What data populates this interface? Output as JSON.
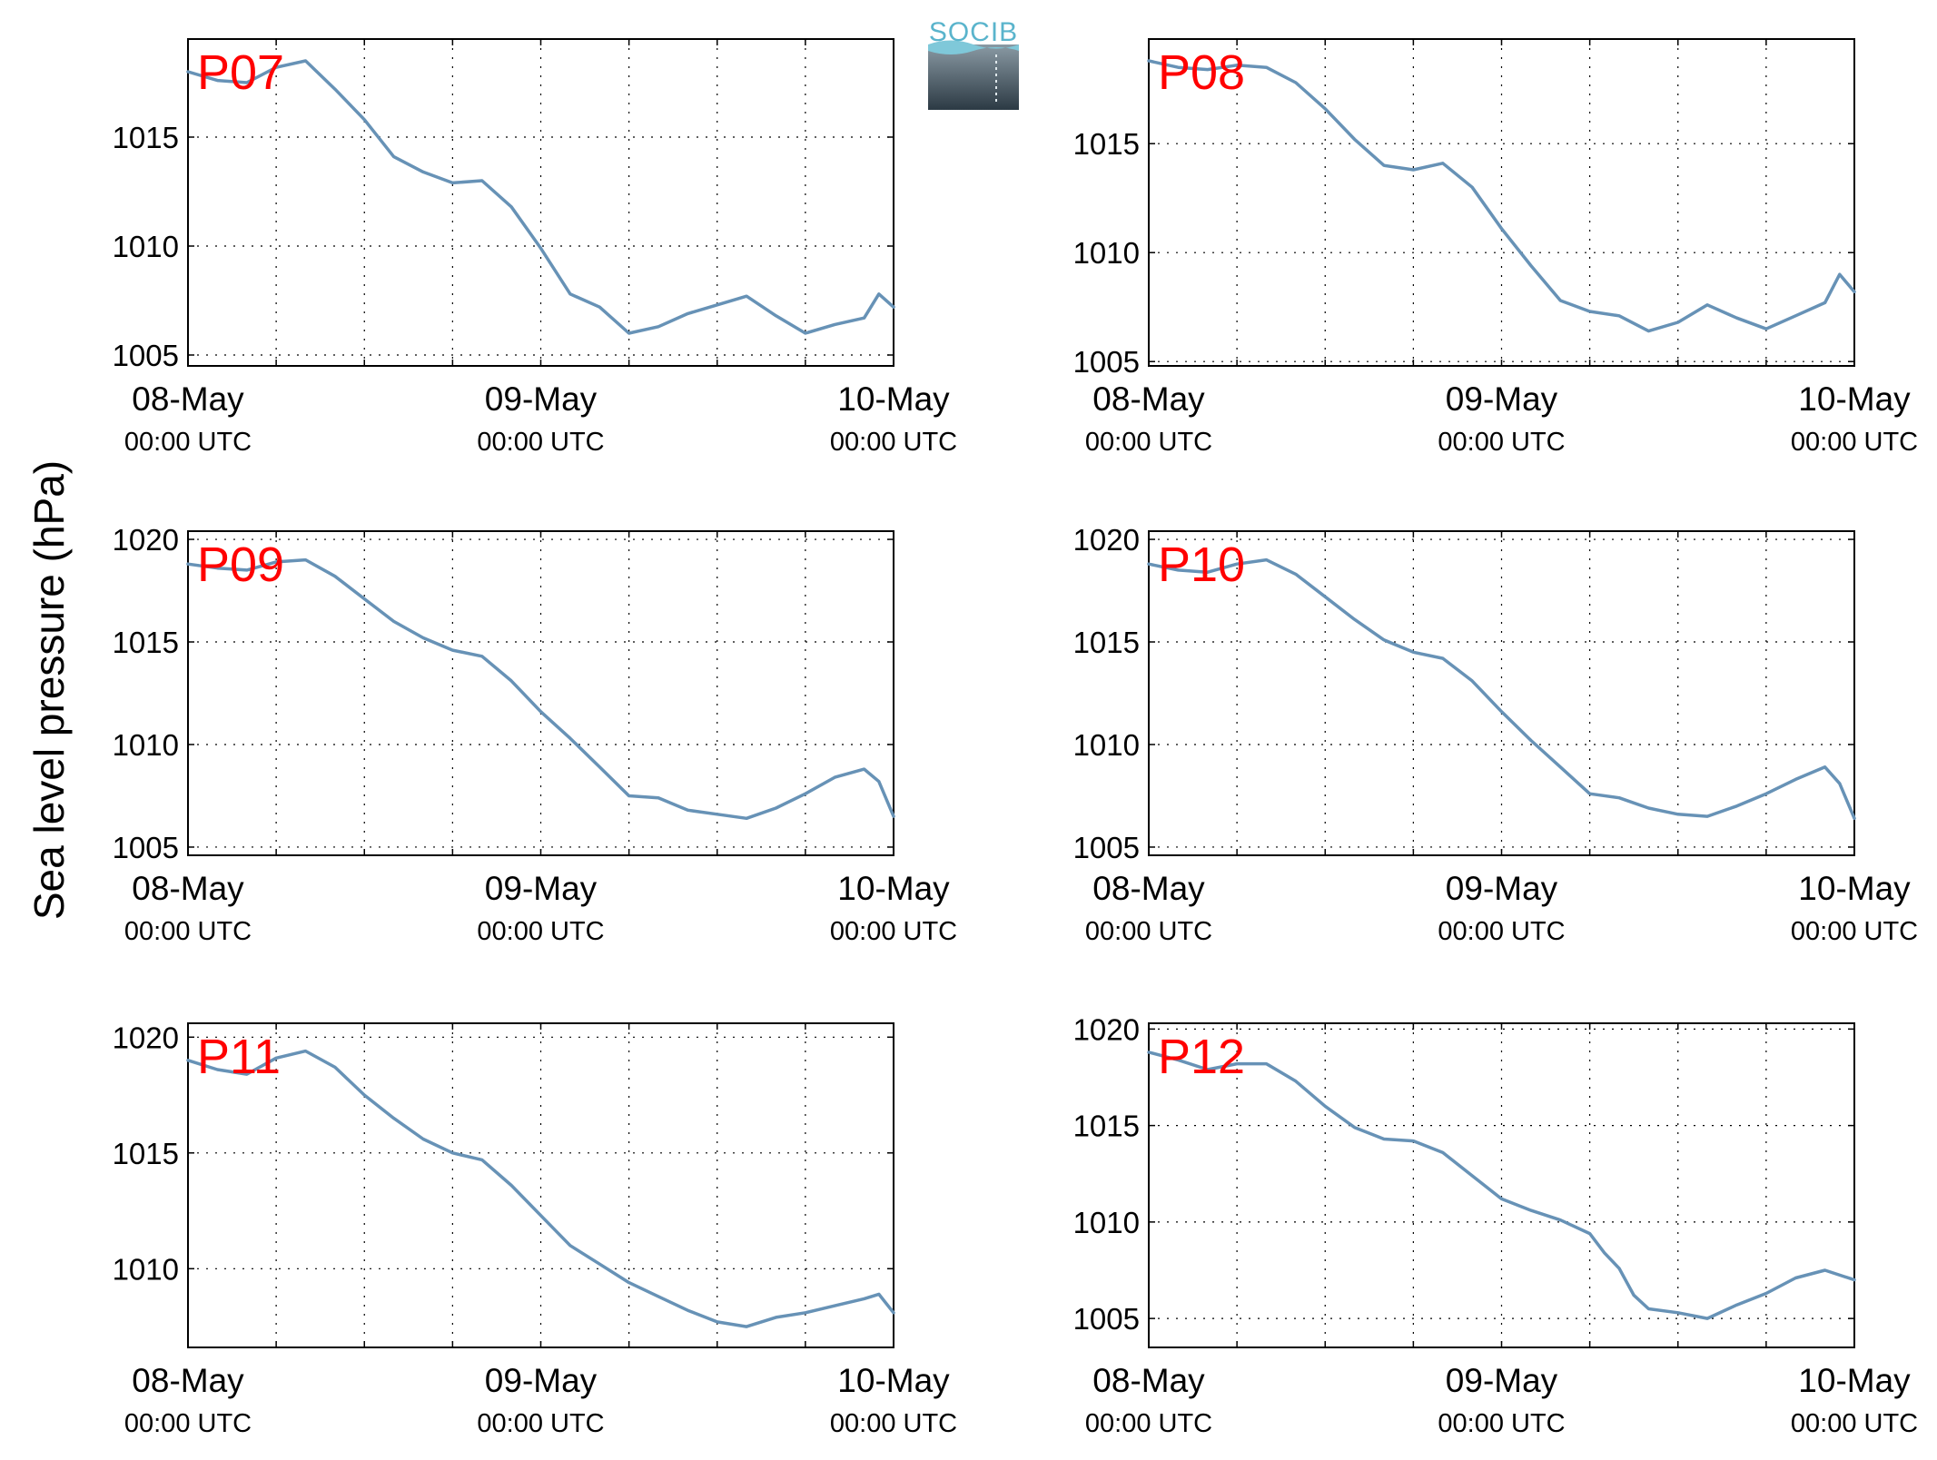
{
  "figure": {
    "ylabel": "Sea level pressure (hPa)",
    "logo": {
      "text": "SOCIB"
    },
    "colors": {
      "line": "#6792b6",
      "panel_label": "#ff0000",
      "axis": "#000000",
      "logo_text": "#5ab4cc"
    }
  },
  "chart_data": [
    {
      "type": "line",
      "label": "P07",
      "x_ticks": [
        {
          "day": "08-May",
          "time": "00:00 UTC"
        },
        {
          "day": "09-May",
          "time": "00:00 UTC"
        },
        {
          "day": "10-May",
          "time": "00:00 UTC"
        }
      ],
      "xlim": [
        "2013-05-08 00:00",
        "2013-05-10 00:00"
      ],
      "yticks": [
        1005,
        1010,
        1015
      ],
      "ylim": [
        1004.5,
        1019.5
      ],
      "grid": true,
      "series": [
        {
          "x_hours": [
            0,
            2,
            4,
            6,
            8,
            10,
            12,
            14,
            16,
            18,
            20,
            22,
            24,
            26,
            28,
            30,
            32,
            34,
            36,
            38,
            40,
            42,
            44,
            46,
            47,
            48
          ],
          "values": [
            1018.0,
            1017.6,
            1017.5,
            1018.2,
            1018.5,
            1017.2,
            1015.8,
            1014.1,
            1013.4,
            1012.9,
            1013.0,
            1011.8,
            1009.9,
            1007.8,
            1007.2,
            1006.0,
            1006.3,
            1006.9,
            1007.3,
            1007.7,
            1006.8,
            1006.0,
            1006.4,
            1006.7,
            1007.8,
            1007.2
          ]
        }
      ]
    },
    {
      "type": "line",
      "label": "P08",
      "x_ticks": [
        {
          "day": "08-May",
          "time": "00:00 UTC"
        },
        {
          "day": "09-May",
          "time": "00:00 UTC"
        },
        {
          "day": "10-May",
          "time": "00:00 UTC"
        }
      ],
      "xlim": [
        "2013-05-08 00:00",
        "2013-05-10 00:00"
      ],
      "yticks": [
        1005,
        1010,
        1015
      ],
      "ylim": [
        1004.8,
        1019.8
      ],
      "grid": true,
      "series": [
        {
          "x_hours": [
            0,
            2,
            4,
            6,
            8,
            10,
            12,
            14,
            16,
            18,
            20,
            22,
            24,
            26,
            28,
            30,
            32,
            34,
            36,
            38,
            40,
            42,
            44,
            46,
            47,
            48
          ],
          "values": [
            1018.8,
            1018.5,
            1018.4,
            1018.6,
            1018.5,
            1017.8,
            1016.6,
            1015.2,
            1014.0,
            1013.8,
            1014.1,
            1013.0,
            1011.1,
            1009.4,
            1007.8,
            1007.3,
            1007.1,
            1006.4,
            1006.8,
            1007.6,
            1007.0,
            1006.5,
            1007.1,
            1007.7,
            1009.0,
            1008.2
          ]
        }
      ]
    },
    {
      "type": "line",
      "label": "P09",
      "x_ticks": [
        {
          "day": "08-May",
          "time": "00:00 UTC"
        },
        {
          "day": "09-May",
          "time": "00:00 UTC"
        },
        {
          "day": "10-May",
          "time": "00:00 UTC"
        }
      ],
      "xlim": [
        "2013-05-08 00:00",
        "2013-05-10 00:00"
      ],
      "yticks": [
        1005,
        1010,
        1015,
        1020
      ],
      "ylim": [
        1004.6,
        1020.4
      ],
      "grid": true,
      "series": [
        {
          "x_hours": [
            0,
            2,
            4,
            6,
            8,
            10,
            12,
            14,
            16,
            18,
            20,
            22,
            24,
            26,
            28,
            30,
            32,
            34,
            36,
            38,
            40,
            42,
            44,
            46,
            47,
            48
          ],
          "values": [
            1018.8,
            1018.6,
            1018.5,
            1018.9,
            1019.0,
            1018.2,
            1017.1,
            1016.0,
            1015.2,
            1014.6,
            1014.3,
            1013.1,
            1011.6,
            1010.3,
            1008.9,
            1007.5,
            1007.4,
            1006.8,
            1006.6,
            1006.4,
            1006.9,
            1007.6,
            1008.4,
            1008.8,
            1008.2,
            1006.5
          ]
        }
      ]
    },
    {
      "type": "line",
      "label": "P10",
      "x_ticks": [
        {
          "day": "08-May",
          "time": "00:00 UTC"
        },
        {
          "day": "09-May",
          "time": "00:00 UTC"
        },
        {
          "day": "10-May",
          "time": "00:00 UTC"
        }
      ],
      "xlim": [
        "2013-05-08 00:00",
        "2013-05-10 00:00"
      ],
      "yticks": [
        1005,
        1010,
        1015,
        1020
      ],
      "ylim": [
        1004.6,
        1020.4
      ],
      "grid": true,
      "series": [
        {
          "x_hours": [
            0,
            2,
            4,
            6,
            8,
            10,
            12,
            14,
            16,
            18,
            20,
            22,
            24,
            26,
            28,
            30,
            32,
            34,
            36,
            38,
            40,
            42,
            44,
            46,
            47,
            48
          ],
          "values": [
            1018.8,
            1018.5,
            1018.4,
            1018.8,
            1019.0,
            1018.3,
            1017.2,
            1016.1,
            1015.1,
            1014.5,
            1014.2,
            1013.1,
            1011.6,
            1010.2,
            1008.9,
            1007.6,
            1007.4,
            1006.9,
            1006.6,
            1006.5,
            1007.0,
            1007.6,
            1008.3,
            1008.9,
            1008.1,
            1006.4
          ]
        }
      ]
    },
    {
      "type": "line",
      "label": "P11",
      "x_ticks": [
        {
          "day": "08-May",
          "time": "00:00 UTC"
        },
        {
          "day": "09-May",
          "time": "00:00 UTC"
        },
        {
          "day": "10-May",
          "time": "00:00 UTC"
        }
      ],
      "xlim": [
        "2013-05-08 00:00",
        "2013-05-10 00:00"
      ],
      "yticks": [
        1010,
        1015,
        1020
      ],
      "ylim": [
        1006.6,
        1020.6
      ],
      "grid": true,
      "series": [
        {
          "x_hours": [
            0,
            2,
            4,
            6,
            8,
            10,
            12,
            14,
            16,
            18,
            20,
            22,
            24,
            26,
            28,
            30,
            32,
            34,
            36,
            38,
            40,
            42,
            44,
            46,
            47,
            48
          ],
          "values": [
            1019.0,
            1018.6,
            1018.4,
            1019.1,
            1019.4,
            1018.7,
            1017.5,
            1016.5,
            1015.6,
            1015.0,
            1014.7,
            1013.6,
            1012.3,
            1011.0,
            1010.2,
            1009.4,
            1008.8,
            1008.2,
            1007.7,
            1007.5,
            1007.9,
            1008.1,
            1008.4,
            1008.7,
            1008.9,
            1008.1
          ]
        }
      ]
    },
    {
      "type": "line",
      "label": "P12",
      "x_ticks": [
        {
          "day": "08-May",
          "time": "00:00 UTC"
        },
        {
          "day": "09-May",
          "time": "00:00 UTC"
        },
        {
          "day": "10-May",
          "time": "00:00 UTC"
        }
      ],
      "xlim": [
        "2013-05-08 00:00",
        "2013-05-10 00:00"
      ],
      "yticks": [
        1005,
        1010,
        1015,
        1020
      ],
      "ylim": [
        1003.5,
        1020.3
      ],
      "grid": true,
      "series": [
        {
          "x_hours": [
            0,
            2,
            4,
            6,
            8,
            10,
            12,
            14,
            16,
            18,
            20,
            22,
            24,
            26,
            28,
            30,
            31,
            32,
            33,
            34,
            36,
            38,
            40,
            42,
            44,
            46,
            48
          ],
          "values": [
            1018.8,
            1018.4,
            1017.9,
            1018.2,
            1018.2,
            1017.3,
            1016.0,
            1014.9,
            1014.3,
            1014.2,
            1013.6,
            1012.4,
            1011.2,
            1010.6,
            1010.1,
            1009.4,
            1008.4,
            1007.6,
            1006.2,
            1005.5,
            1005.3,
            1005.0,
            1005.7,
            1006.3,
            1007.1,
            1007.5,
            1007.0
          ]
        }
      ]
    }
  ]
}
